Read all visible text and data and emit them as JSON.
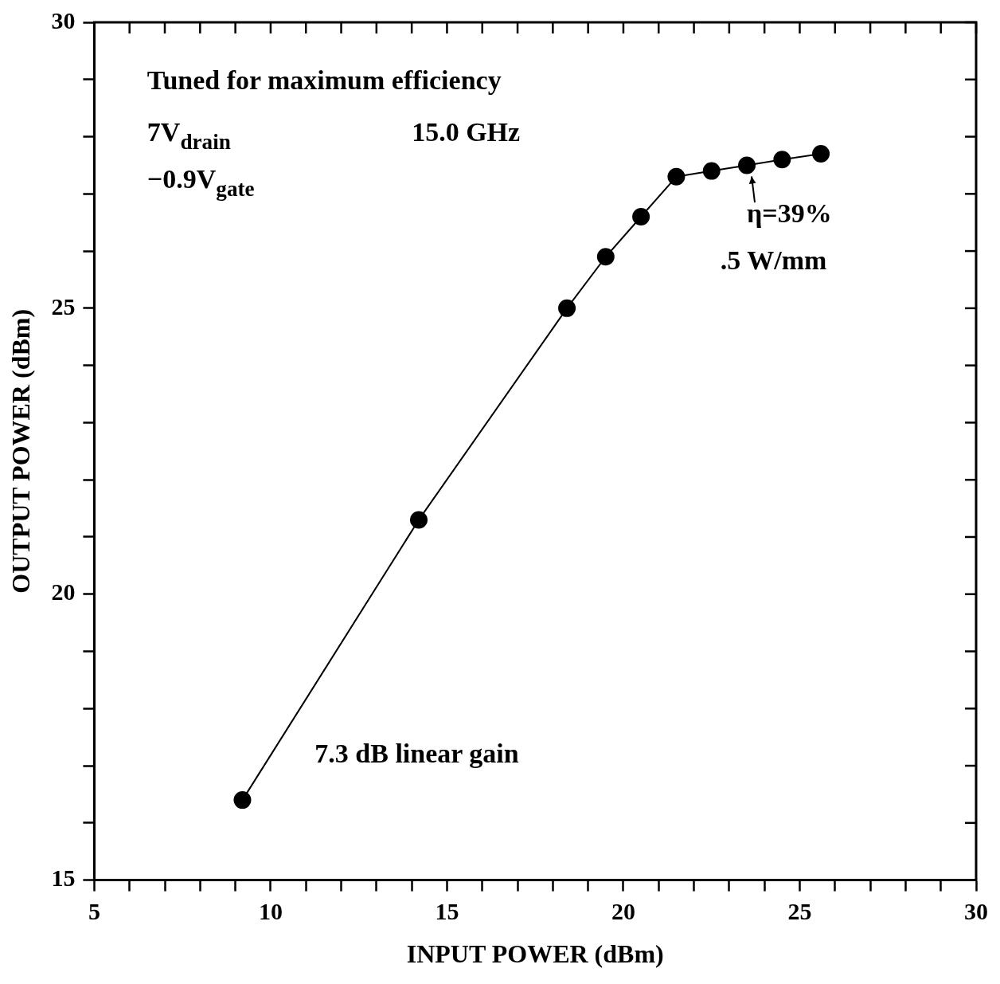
{
  "chart_data": {
    "type": "line",
    "xlabel": "INPUT POWER (dBm)",
    "ylabel": "OUTPUT POWER (dBm)",
    "x": [
      9.2,
      14.2,
      18.4,
      19.5,
      20.5,
      21.5,
      22.5,
      23.5,
      24.5,
      25.6
    ],
    "series": [
      {
        "color": "#000000",
        "values": [
          16.4,
          21.3,
          25.0,
          25.9,
          26.6,
          27.3,
          27.4,
          27.5,
          27.6,
          27.7
        ]
      }
    ],
    "xlim": [
      5,
      30
    ],
    "ylim": [
      15,
      30
    ],
    "xticks": [
      5,
      {
        "value": 6,
        "label": null
      },
      {
        "value": 7,
        "label": null
      },
      {
        "value": 8,
        "label": null
      },
      {
        "value": 9,
        "label": null
      },
      10,
      {
        "value": 11,
        "label": null
      },
      {
        "value": 12,
        "label": null
      },
      {
        "value": 13,
        "label": null
      },
      {
        "value": 14,
        "label": null
      },
      15,
      {
        "value": 16,
        "label": null
      },
      {
        "value": 17,
        "label": null
      },
      {
        "value": 18,
        "label": null
      },
      {
        "value": 19,
        "label": null
      },
      20,
      {
        "value": 21,
        "label": null
      },
      {
        "value": 22,
        "label": null
      },
      {
        "value": 23,
        "label": null
      },
      {
        "value": 24,
        "label": null
      },
      25,
      {
        "value": 26,
        "label": null
      },
      {
        "value": 27,
        "label": null
      },
      {
        "value": 28,
        "label": null
      },
      {
        "value": 29,
        "label": null
      },
      30
    ],
    "yticks": [
      15,
      {
        "value": 16,
        "label": null
      },
      {
        "value": 17,
        "label": null
      },
      {
        "value": 18,
        "label": null
      },
      {
        "value": 19,
        "label": null
      },
      20,
      {
        "value": 21,
        "label": null
      },
      {
        "value": 22,
        "label": null
      },
      {
        "value": 23,
        "label": null
      },
      {
        "value": 24,
        "label": null
      },
      25,
      {
        "value": 26,
        "label": null
      },
      {
        "value": 27,
        "label": null
      },
      {
        "value": 28,
        "label": null
      },
      {
        "value": 29,
        "label": null
      },
      30
    ],
    "grid": false,
    "legend": false,
    "marker": "circle",
    "line_style": "solid",
    "annotations": [
      "Tuned for maximum efficiency",
      "7V$_{drain}$",
      "−0.9V$_{gate}$",
      "15.0 GHz",
      {
        "text": "η=39%",
        "x": 23.5,
        "y": 27.5
      },
      ".5 W/mm",
      "7.3 dB linear gain"
    ]
  }
}
